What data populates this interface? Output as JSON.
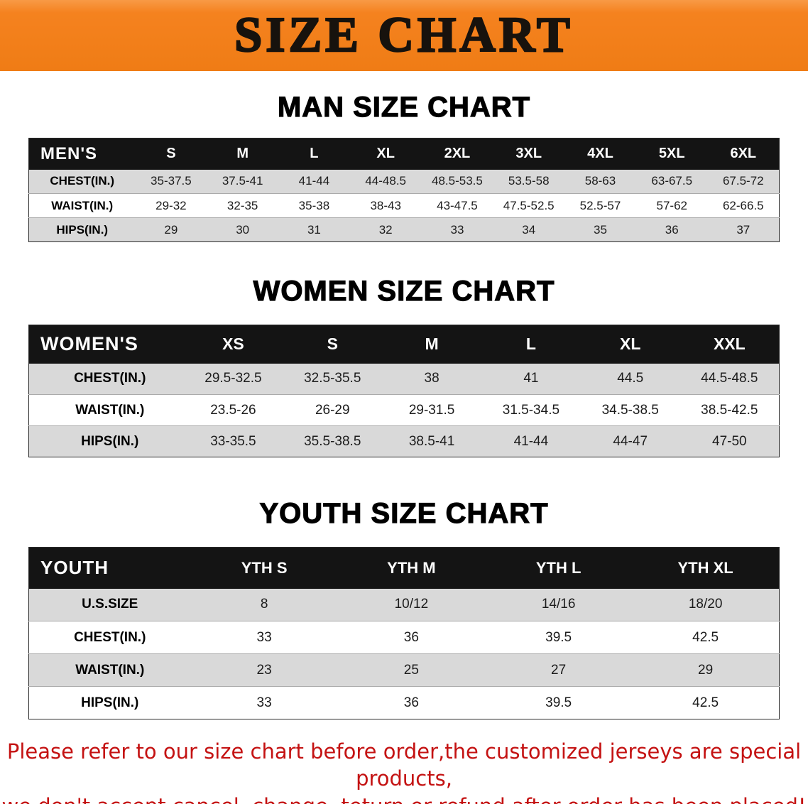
{
  "banner": {
    "title": "SIZE CHART"
  },
  "colors": {
    "banner_bg": "#f5821f",
    "table_header_bg": "#141414",
    "row_alt_bg": "#d9d9d9",
    "disclaimer_text": "#c41212"
  },
  "sections": [
    {
      "id": "men",
      "heading": "MAN SIZE CHART",
      "table": {
        "header": [
          "MEN'S",
          "S",
          "M",
          "L",
          "XL",
          "2XL",
          "3XL",
          "4XL",
          "5XL",
          "6XL"
        ],
        "rows": [
          [
            "CHEST(IN.)",
            "35-37.5",
            "37.5-41",
            "41-44",
            "44-48.5",
            "48.5-53.5",
            "53.5-58",
            "58-63",
            "63-67.5",
            "67.5-72"
          ],
          [
            "WAIST(IN.)",
            "29-32",
            "32-35",
            "35-38",
            "38-43",
            "43-47.5",
            "47.5-52.5",
            "52.5-57",
            "57-62",
            "62-66.5"
          ],
          [
            "HIPS(IN.)",
            "29",
            "30",
            "31",
            "32",
            "33",
            "34",
            "35",
            "36",
            "37"
          ]
        ]
      }
    },
    {
      "id": "women",
      "heading": "WOMEN SIZE CHART",
      "table": {
        "header": [
          "WOMEN'S",
          "XS",
          "S",
          "M",
          "L",
          "XL",
          "XXL"
        ],
        "rows": [
          [
            "CHEST(IN.)",
            "29.5-32.5",
            "32.5-35.5",
            "38",
            "41",
            "44.5",
            "44.5-48.5"
          ],
          [
            "WAIST(IN.)",
            "23.5-26",
            "26-29",
            "29-31.5",
            "31.5-34.5",
            "34.5-38.5",
            "38.5-42.5"
          ],
          [
            "HIPS(IN.)",
            "33-35.5",
            "35.5-38.5",
            "38.5-41",
            "41-44",
            "44-47",
            "47-50"
          ]
        ]
      }
    },
    {
      "id": "youth",
      "heading": "YOUTH SIZE CHART",
      "table": {
        "header": [
          "YOUTH",
          "YTH S",
          "YTH M",
          "YTH L",
          "YTH XL"
        ],
        "rows": [
          [
            "U.S.SIZE",
            "8",
            "10/12",
            "14/16",
            "18/20"
          ],
          [
            "CHEST(IN.)",
            "33",
            "36",
            "39.5",
            "42.5"
          ],
          [
            "WAIST(IN.)",
            "23",
            "25",
            "27",
            "29"
          ],
          [
            "HIPS(IN.)",
            "33",
            "36",
            "39.5",
            "42.5"
          ]
        ]
      }
    }
  ],
  "disclaimer": {
    "line1": "Please refer to our size chart before order,the customized jerseys are special products,",
    "line2": "we don't accept cancel, change, teturn or refund after order has been placed!"
  }
}
